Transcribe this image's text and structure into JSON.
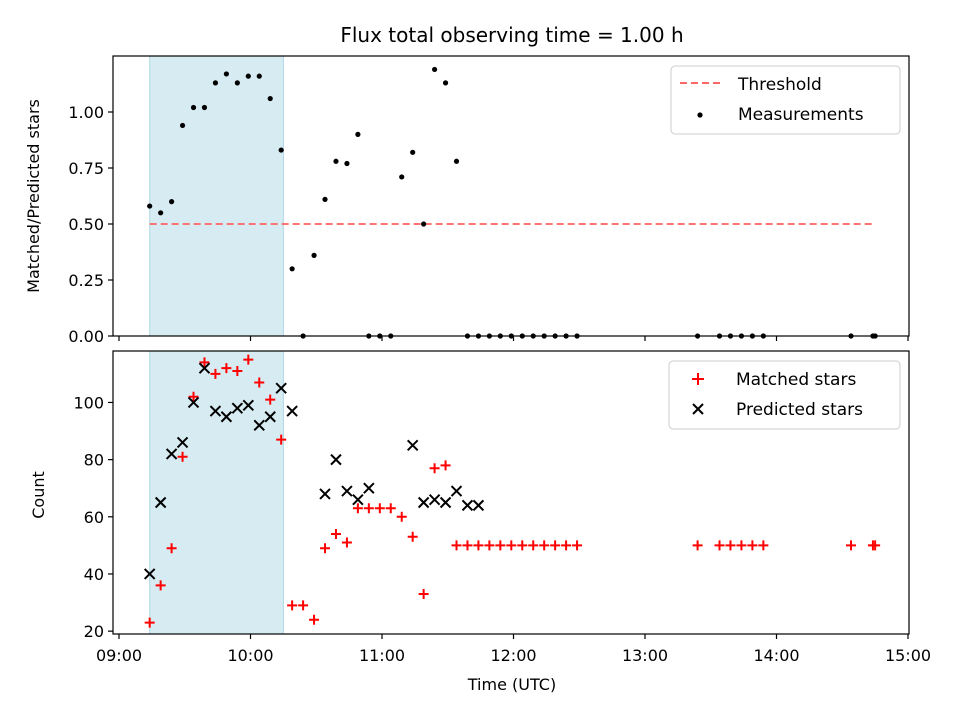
{
  "chart_data": [
    {
      "type": "scatter",
      "title": "Flux total observing time = 1.00 h",
      "xlabel": "",
      "ylabel": "Matched/Predicted stars",
      "xlim": [
        "09:00",
        "15:00"
      ],
      "ylim": [
        0,
        1.25
      ],
      "yticks": [
        "0.00",
        "0.25",
        "0.50",
        "0.75",
        "1.00"
      ],
      "shaded_span": {
        "x": [
          "09:14",
          "10:15"
        ],
        "color": "#add8e6"
      },
      "legend_position": "top-right",
      "series": [
        {
          "name": "Threshold",
          "kind": "line-dashed",
          "color": "#ff6666",
          "x": [
            "09:14",
            "14:45"
          ],
          "y": [
            0.5,
            0.5
          ]
        },
        {
          "name": "Measurements",
          "kind": "scatter-dot",
          "color": "#000000",
          "x": [
            "09:14",
            "09:19",
            "09:24",
            "09:29",
            "09:34",
            "09:39",
            "09:44",
            "09:49",
            "09:54",
            "09:59",
            "10:04",
            "10:09",
            "10:14",
            "10:19",
            "10:24",
            "10:29",
            "10:34",
            "10:39",
            "10:44",
            "10:49",
            "10:54",
            "10:59",
            "11:04",
            "11:09",
            "11:14",
            "11:19",
            "11:24",
            "11:29",
            "11:34",
            "11:39",
            "11:44",
            "11:49",
            "11:54",
            "11:59",
            "12:04",
            "12:09",
            "12:14",
            "12:19",
            "12:24",
            "12:29",
            "13:24",
            "13:34",
            "13:39",
            "13:44",
            "13:49",
            "13:54",
            "14:34",
            "14:44",
            "14:45"
          ],
          "y": [
            0.58,
            0.55,
            0.6,
            0.94,
            1.02,
            1.02,
            1.13,
            1.17,
            1.13,
            1.16,
            1.16,
            1.06,
            0.83,
            0.3,
            0.0,
            0.36,
            0.61,
            0.78,
            0.77,
            0.9,
            0.0,
            0.0,
            0.0,
            0.71,
            0.82,
            0.5,
            1.19,
            1.13,
            0.78,
            0.0,
            0.0,
            0.0,
            0.0,
            0.0,
            0.0,
            0.0,
            0.0,
            0.0,
            0.0,
            0.0,
            0.0,
            0.0,
            0.0,
            0.0,
            0.0,
            0.0,
            0.0,
            0.0,
            0.0
          ]
        }
      ]
    },
    {
      "type": "scatter",
      "title": "",
      "xlabel": "Time (UTC)",
      "ylabel": "Count",
      "xlim": [
        "09:00",
        "15:00"
      ],
      "ylim": [
        19,
        118
      ],
      "xticks": [
        "09:00",
        "10:00",
        "11:00",
        "12:00",
        "13:00",
        "14:00",
        "15:00"
      ],
      "yticks": [
        "20",
        "40",
        "60",
        "80",
        "100"
      ],
      "shaded_span": {
        "x": [
          "09:14",
          "10:15"
        ],
        "color": "#add8e6"
      },
      "legend_position": "top-right",
      "series": [
        {
          "name": "Matched stars",
          "kind": "plus",
          "color": "#ff0000",
          "x": [
            "09:14",
            "09:19",
            "09:24",
            "09:29",
            "09:34",
            "09:39",
            "09:44",
            "09:49",
            "09:54",
            "09:59",
            "10:04",
            "10:09",
            "10:14",
            "10:19",
            "10:24",
            "10:29",
            "10:34",
            "10:39",
            "10:44",
            "10:49",
            "10:54",
            "10:59",
            "11:04",
            "11:09",
            "11:14",
            "11:19",
            "11:24",
            "11:29",
            "11:34",
            "11:39",
            "11:44",
            "11:49",
            "11:54",
            "11:59",
            "12:04",
            "12:09",
            "12:14",
            "12:19",
            "12:24",
            "12:29",
            "13:24",
            "13:34",
            "13:39",
            "13:44",
            "13:49",
            "13:54",
            "14:34",
            "14:44",
            "14:45"
          ],
          "y": [
            23,
            36,
            49,
            81,
            102,
            114,
            110,
            112,
            111,
            115,
            107,
            101,
            87,
            29,
            29,
            24,
            49,
            54,
            51,
            63,
            63,
            63,
            63,
            60,
            53,
            33,
            77,
            78,
            50,
            50,
            50,
            50,
            50,
            50,
            50,
            50,
            50,
            50,
            50,
            50,
            50,
            50,
            50,
            50,
            50,
            50,
            50,
            50,
            50
          ]
        },
        {
          "name": "Predicted stars",
          "kind": "x",
          "color": "#000000",
          "x": [
            "09:14",
            "09:19",
            "09:24",
            "09:29",
            "09:34",
            "09:39",
            "09:44",
            "09:49",
            "09:54",
            "09:59",
            "10:04",
            "10:09",
            "10:14",
            "10:19",
            "10:34",
            "10:39",
            "10:44",
            "10:49",
            "10:54",
            "11:14",
            "11:19",
            "11:24",
            "11:29",
            "11:34",
            "11:39",
            "11:44"
          ],
          "y": [
            40,
            65,
            82,
            86,
            100,
            112,
            97,
            95,
            98,
            99,
            92,
            95,
            105,
            97,
            68,
            80,
            69,
            66,
            70,
            85,
            65,
            66,
            65,
            69,
            64,
            64
          ]
        }
      ]
    }
  ]
}
